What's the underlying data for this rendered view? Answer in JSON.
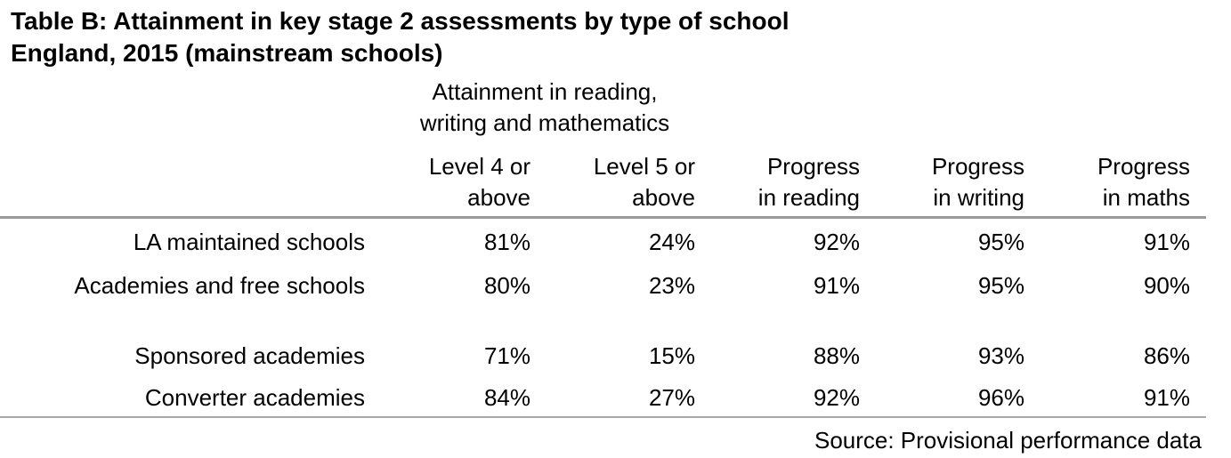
{
  "title": {
    "line1": "Table B: Attainment in key stage 2 assessments by type of school",
    "line2": "England, 2015 (mainstream schools)"
  },
  "group_header": {
    "line1": "Attainment in reading,",
    "line2": "writing and mathematics"
  },
  "columns": [
    {
      "line1": "Level 4 or",
      "line2": "above"
    },
    {
      "line1": "Level 5 or",
      "line2": "above"
    },
    {
      "line1": "Progress",
      "line2": "in reading"
    },
    {
      "line1": "Progress",
      "line2": "in writing"
    },
    {
      "line1": "Progress",
      "line2": "in maths"
    }
  ],
  "rows": [
    {
      "label": "LA maintained schools",
      "values": [
        "81%",
        "24%",
        "92%",
        "95%",
        "91%"
      ]
    },
    {
      "label": "Academies and free schools",
      "values": [
        "80%",
        "23%",
        "91%",
        "95%",
        "90%"
      ]
    },
    {
      "label": "Sponsored academies",
      "values": [
        "71%",
        "15%",
        "88%",
        "93%",
        "86%"
      ]
    },
    {
      "label": "Converter academies",
      "values": [
        "84%",
        "27%",
        "92%",
        "96%",
        "91%"
      ]
    }
  ],
  "source": "Source: Provisional performance data"
}
